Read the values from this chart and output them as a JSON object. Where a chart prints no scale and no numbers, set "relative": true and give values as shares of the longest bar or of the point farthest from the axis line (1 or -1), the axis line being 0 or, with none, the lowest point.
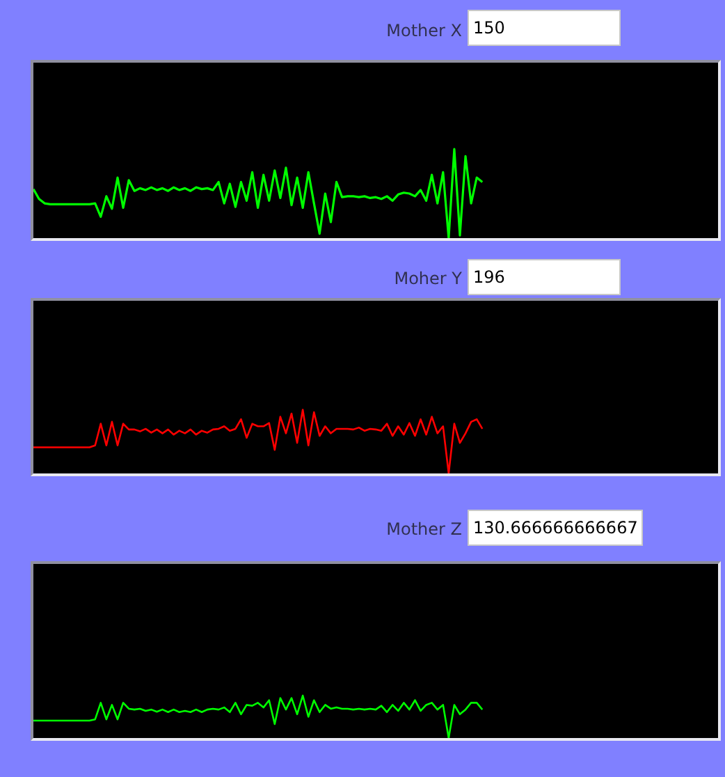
{
  "chart_data": [
    {
      "type": "line",
      "title": "Mother X",
      "annotations": [
        "150"
      ],
      "relative": true,
      "tick_labels": false,
      "categories": [
        null,
        null,
        null,
        null,
        null,
        null,
        null,
        null,
        null,
        null,
        null,
        null,
        null,
        null,
        null,
        null,
        null,
        null,
        null,
        null,
        null,
        null,
        null,
        null,
        null,
        null,
        null,
        null,
        null,
        null,
        null,
        null,
        null,
        null,
        null,
        null,
        null,
        null,
        null,
        null,
        null,
        null,
        null,
        null,
        null,
        null,
        null,
        null,
        null,
        null,
        null,
        null,
        null,
        null,
        null,
        null,
        null,
        null,
        null,
        null,
        null,
        null,
        null,
        null,
        null,
        null,
        null,
        null,
        null,
        null,
        null,
        null,
        null,
        null,
        null,
        null,
        null,
        null,
        null,
        null,
        null,
        null,
        null,
        null,
        null,
        null,
        null,
        null,
        null,
        null,
        null,
        null,
        null,
        null,
        null,
        null,
        null,
        null,
        null,
        null,
        null,
        null,
        null,
        null,
        null,
        null,
        null,
        null,
        null,
        null,
        null,
        null,
        null,
        null,
        null,
        null,
        null,
        null,
        null,
        null,
        null,
        null,
        null
      ],
      "series": [
        {
          "color": "#00ff00",
          "values": [
            0.55,
            0.44,
            0.39,
            0.38,
            0.38,
            0.38,
            0.38,
            0.38,
            0.38,
            0.38,
            0.38,
            0.39,
            0.24,
            0.47,
            0.33,
            0.68,
            0.34,
            0.65,
            0.53,
            0.56,
            0.54,
            0.57,
            0.54,
            0.56,
            0.53,
            0.57,
            0.54,
            0.56,
            0.53,
            0.57,
            0.55,
            0.56,
            0.54,
            0.63,
            0.39,
            0.61,
            0.35,
            0.63,
            0.42,
            0.74,
            0.34,
            0.71,
            0.42,
            0.76,
            0.45,
            0.79,
            0.37,
            0.68,
            0.34,
            0.74,
            0.39,
            0.05,
            0.5,
            0.18,
            0.63,
            0.46,
            0.47,
            0.47,
            0.46,
            0.47,
            0.45,
            0.46,
            0.44,
            0.47,
            0.42,
            0.49,
            0.51,
            0.5,
            0.47,
            0.54,
            0.42,
            0.71,
            0.39,
            0.74,
            0,
            1,
            0.03,
            0.92,
            0.39,
            0.68,
            0.63,
            null,
            null,
            null,
            null,
            null,
            null,
            null,
            null,
            null,
            null,
            null,
            null,
            null,
            null,
            null,
            null,
            null,
            null,
            null,
            null,
            null,
            null,
            null,
            null,
            null,
            null,
            null,
            null,
            null,
            null,
            null,
            null,
            null,
            null,
            null,
            null,
            null,
            null,
            null,
            null,
            null,
            null
          ]
        }
      ]
    },
    {
      "type": "line",
      "title": "Moher Y",
      "annotations": [
        "196"
      ],
      "relative": true,
      "tick_labels": false,
      "categories": [
        null,
        null,
        null,
        null,
        null,
        null,
        null,
        null,
        null,
        null,
        null,
        null,
        null,
        null,
        null,
        null,
        null,
        null,
        null,
        null,
        null,
        null,
        null,
        null,
        null,
        null,
        null,
        null,
        null,
        null,
        null,
        null,
        null,
        null,
        null,
        null,
        null,
        null,
        null,
        null,
        null,
        null,
        null,
        null,
        null,
        null,
        null,
        null,
        null,
        null,
        null,
        null,
        null,
        null,
        null,
        null,
        null,
        null,
        null,
        null,
        null,
        null,
        null,
        null,
        null,
        null,
        null,
        null,
        null,
        null,
        null,
        null,
        null,
        null,
        null,
        null,
        null,
        null,
        null,
        null,
        null,
        null,
        null,
        null,
        null,
        null,
        null,
        null,
        null,
        null,
        null,
        null,
        null,
        null,
        null,
        null,
        null,
        null,
        null,
        null,
        null,
        null,
        null,
        null,
        null,
        null,
        null,
        null,
        null,
        null,
        null,
        null,
        null,
        null,
        null,
        null,
        null,
        null,
        null,
        null,
        null,
        null,
        null
      ],
      "series": [
        {
          "color": "#ff0000",
          "values": [
            0.41,
            0.41,
            0.41,
            0.41,
            0.41,
            0.41,
            0.41,
            0.41,
            0.41,
            0.41,
            0.41,
            0.44,
            0.78,
            0.44,
            0.81,
            0.44,
            0.78,
            0.69,
            0.69,
            0.66,
            0.7,
            0.64,
            0.69,
            0.63,
            0.69,
            0.61,
            0.67,
            0.63,
            0.69,
            0.61,
            0.67,
            0.64,
            0.69,
            0.7,
            0.74,
            0.67,
            0.7,
            0.85,
            0.56,
            0.78,
            0.74,
            0.74,
            0.79,
            0.37,
            0.89,
            0.63,
            0.94,
            0.48,
            1,
            0.44,
            0.96,
            0.59,
            0.74,
            0.63,
            0.7,
            0.7,
            0.7,
            0.69,
            0.72,
            0.67,
            0.7,
            0.69,
            0.67,
            0.78,
            0.59,
            0.74,
            0.61,
            0.79,
            0.59,
            0.85,
            0.61,
            0.89,
            0.63,
            0.74,
            0,
            0.78,
            0.48,
            0.63,
            0.81,
            0.85,
            0.7,
            null,
            null,
            null,
            null,
            null,
            null,
            null,
            null,
            null,
            null,
            null,
            null,
            null,
            null,
            null,
            null,
            null,
            null,
            null,
            null,
            null,
            null,
            null,
            null,
            null,
            null,
            null,
            null,
            null,
            null,
            null,
            null,
            null,
            null,
            null,
            null,
            null,
            null,
            null,
            null,
            null,
            null
          ]
        }
      ]
    },
    {
      "type": "line",
      "title": "Mother Z",
      "annotations": [
        "130.666666666667"
      ],
      "relative": true,
      "tick_labels": false,
      "categories": [
        null,
        null,
        null,
        null,
        null,
        null,
        null,
        null,
        null,
        null,
        null,
        null,
        null,
        null,
        null,
        null,
        null,
        null,
        null,
        null,
        null,
        null,
        null,
        null,
        null,
        null,
        null,
        null,
        null,
        null,
        null,
        null,
        null,
        null,
        null,
        null,
        null,
        null,
        null,
        null,
        null,
        null,
        null,
        null,
        null,
        null,
        null,
        null,
        null,
        null,
        null,
        null,
        null,
        null,
        null,
        null,
        null,
        null,
        null,
        null,
        null,
        null,
        null,
        null,
        null,
        null,
        null,
        null,
        null,
        null,
        null,
        null,
        null,
        null,
        null,
        null,
        null,
        null,
        null,
        null,
        null,
        null,
        null,
        null,
        null,
        null,
        null,
        null,
        null,
        null,
        null,
        null,
        null,
        null,
        null,
        null,
        null,
        null,
        null,
        null,
        null,
        null,
        null,
        null,
        null,
        null,
        null,
        null,
        null,
        null,
        null,
        null,
        null,
        null,
        null,
        null,
        null,
        null,
        null,
        null,
        null,
        null,
        null
      ],
      "series": [
        {
          "color": "#00ff00",
          "values": [
            0.41,
            0.41,
            0.41,
            0.41,
            0.41,
            0.41,
            0.41,
            0.41,
            0.41,
            0.41,
            0.41,
            0.44,
            0.83,
            0.44,
            0.78,
            0.44,
            0.83,
            0.69,
            0.67,
            0.69,
            0.64,
            0.67,
            0.62,
            0.67,
            0.61,
            0.67,
            0.61,
            0.64,
            0.61,
            0.67,
            0.61,
            0.67,
            0.69,
            0.67,
            0.72,
            0.61,
            0.83,
            0.56,
            0.78,
            0.76,
            0.83,
            0.72,
            0.89,
            0.33,
            0.94,
            0.67,
            0.94,
            0.56,
            1,
            0.5,
            0.89,
            0.61,
            0.78,
            0.69,
            0.72,
            0.69,
            0.69,
            0.67,
            0.69,
            0.67,
            0.69,
            0.67,
            0.76,
            0.61,
            0.78,
            0.64,
            0.83,
            0.67,
            0.89,
            0.64,
            0.78,
            0.83,
            0.67,
            0.78,
            0,
            0.78,
            0.56,
            0.67,
            0.83,
            0.83,
            0.67,
            null,
            null,
            null,
            null,
            null,
            null,
            null,
            null,
            null,
            null,
            null,
            null,
            null,
            null,
            null,
            null,
            null,
            null,
            null,
            null,
            null,
            null,
            null,
            null,
            null,
            null,
            null,
            null,
            null,
            null,
            null,
            null,
            null,
            null,
            null,
            null,
            null,
            null,
            null,
            null,
            null,
            null
          ]
        }
      ]
    }
  ]
}
